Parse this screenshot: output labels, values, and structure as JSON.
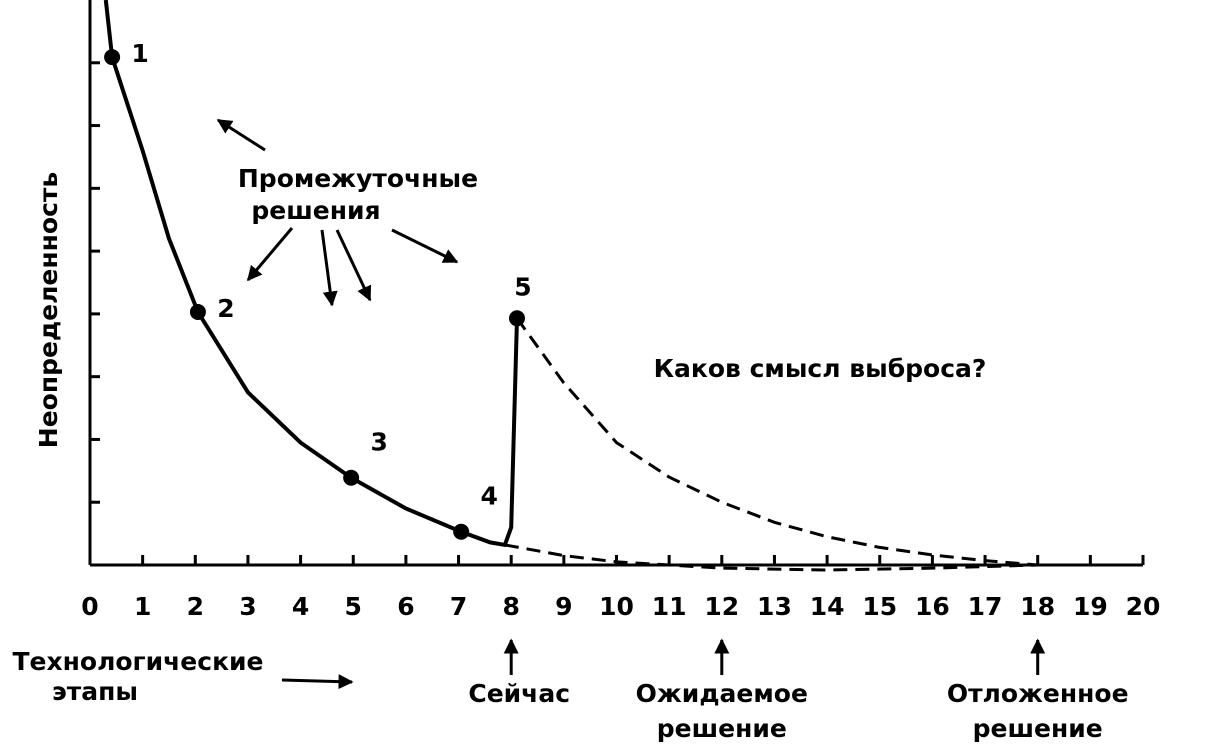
{
  "chart_data": {
    "type": "line",
    "ylabel": "Неопределенность",
    "xlabel": [
      "Технологические",
      "этапы"
    ],
    "xlim": [
      0,
      20
    ],
    "xticks": [
      0,
      1,
      2,
      3,
      4,
      5,
      6,
      7,
      8,
      9,
      10,
      11,
      12,
      13,
      14,
      15,
      16,
      17,
      18,
      19,
      20
    ],
    "ylim": [
      0,
      9
    ],
    "yticks": [
      1,
      2,
      3,
      4,
      5,
      6,
      7,
      8
    ],
    "series": [
      {
        "color": "#000000",
        "style": "solid",
        "x": [
          0.3,
          0.42,
          1,
          1.5,
          2.05,
          3,
          4,
          4.96,
          6,
          7.05,
          7.6,
          7.88,
          8.0,
          8.11
        ],
        "values": [
          9,
          8.09,
          6.6,
          5.2,
          4.03,
          2.75,
          1.95,
          1.39,
          0.9,
          0.53,
          0.36,
          0.32,
          0.6,
          3.93
        ]
      },
      {
        "color": "#000000",
        "style": "dashed",
        "x": [
          7.88,
          9,
          10,
          11,
          12,
          14,
          16,
          18
        ],
        "values": [
          0.32,
          0.15,
          0.05,
          0.0,
          -0.05,
          -0.08,
          -0.05,
          0
        ]
      },
      {
        "color": "#000000",
        "style": "dashed",
        "x": [
          8.11,
          9,
          10,
          11,
          12,
          13,
          14,
          15,
          16,
          17,
          18
        ],
        "values": [
          3.93,
          2.9,
          1.95,
          1.4,
          1.0,
          0.68,
          0.45,
          0.28,
          0.16,
          0.07,
          0
        ]
      }
    ],
    "points": {
      "labels": [
        "1",
        "2",
        "3",
        "4",
        "5"
      ],
      "x": [
        0.42,
        2.05,
        4.96,
        7.05,
        8.11
      ],
      "values": [
        8.09,
        4.03,
        1.39,
        0.53,
        3.93
      ]
    },
    "annotations": {
      "intermediate": [
        "Промежуточные",
        "решения"
      ],
      "question": "Каков смысл выброса?"
    },
    "markers": [
      {
        "x": 8,
        "label": [
          "Сейчас"
        ]
      },
      {
        "x": 12,
        "label": [
          "Ожидаемое",
          "решение"
        ]
      },
      {
        "x": 18,
        "label": [
          "Отложенное",
          "решение"
        ]
      }
    ]
  }
}
